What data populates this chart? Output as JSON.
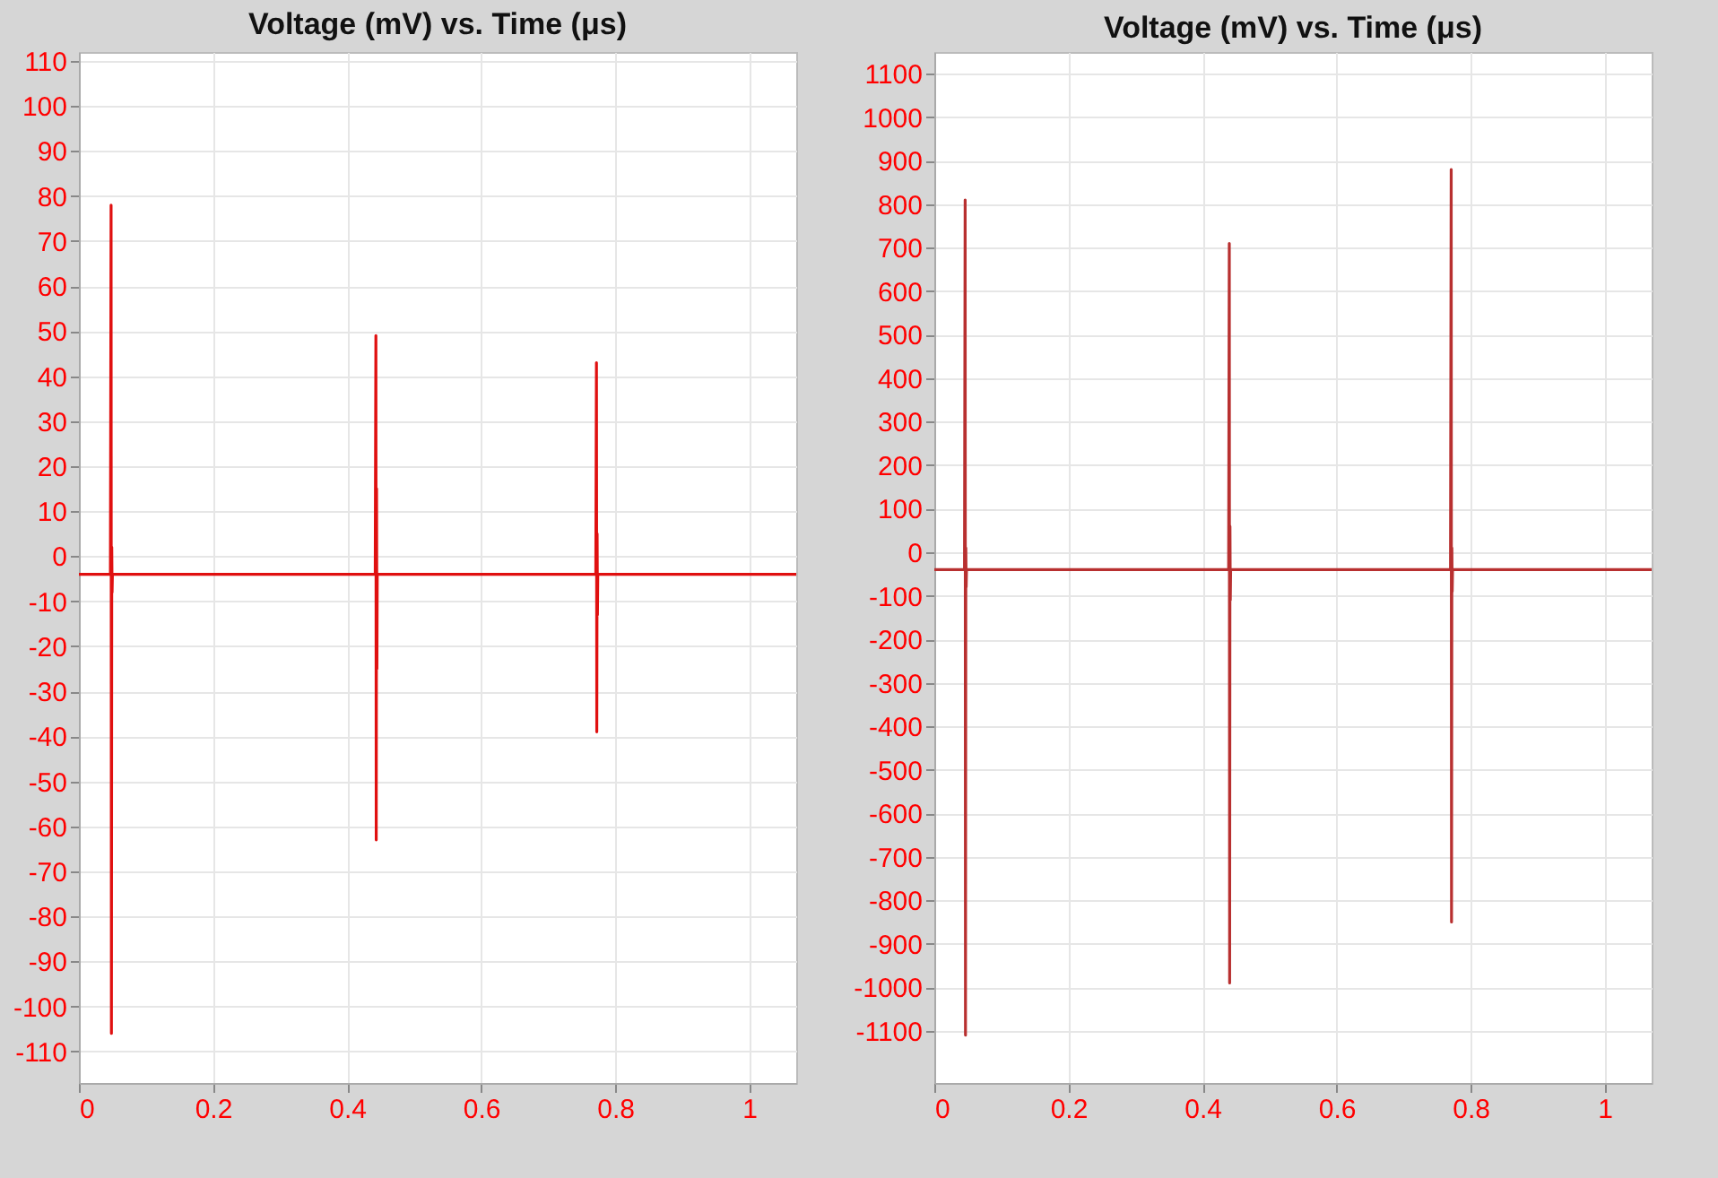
{
  "chart_data": [
    {
      "type": "line",
      "title": "Voltage (mV) vs. Time (μs)",
      "xlim": [
        0,
        1.07
      ],
      "xticks": [
        0,
        0.2,
        0.4,
        0.6,
        0.8,
        1
      ],
      "ylim": [
        -117,
        112
      ],
      "yticks": [
        -110,
        -100,
        -90,
        -80,
        -70,
        -60,
        -50,
        -40,
        -30,
        -20,
        -10,
        0,
        10,
        20,
        30,
        40,
        50,
        60,
        70,
        80,
        90,
        100,
        110
      ],
      "grid": true,
      "series": [
        {
          "color": "#e01010",
          "x": [
            0,
            0.047,
            0.048,
            0.0485,
            0.049,
            0.0495,
            0.05,
            0.442,
            0.443,
            0.4435,
            0.444,
            0.4445,
            0.445,
            0.771,
            0.772,
            0.7725,
            0.773,
            0.7735,
            0.774,
            1.07
          ],
          "values": [
            -4,
            -4,
            78,
            -106,
            2,
            -8,
            -4,
            -4,
            49,
            -63,
            15,
            -25,
            -4,
            -4,
            43,
            -39,
            5,
            -13,
            -4,
            -4
          ]
        }
      ]
    },
    {
      "type": "line",
      "title": "Voltage (mV) vs. Time (μs)",
      "xlim": [
        0,
        1.07
      ],
      "xticks": [
        0,
        0.2,
        0.4,
        0.6,
        0.8,
        1
      ],
      "ylim": [
        -1220,
        1150
      ],
      "yticks": [
        -1100,
        -1000,
        -900,
        -800,
        -700,
        -600,
        -500,
        -400,
        -300,
        -200,
        -100,
        0,
        100,
        200,
        300,
        400,
        500,
        600,
        700,
        800,
        900,
        1000,
        1100
      ],
      "grid": true,
      "series": [
        {
          "color": "#b83030",
          "x": [
            0,
            0.045,
            0.046,
            0.0465,
            0.047,
            0.0475,
            0.048,
            0.439,
            0.44,
            0.4405,
            0.441,
            0.4415,
            0.442,
            0.77,
            0.771,
            0.7715,
            0.772,
            0.7725,
            0.773,
            1.07
          ],
          "values": [
            -40,
            -40,
            810,
            -1110,
            10,
            -80,
            -40,
            -40,
            710,
            -990,
            60,
            -110,
            -40,
            -40,
            880,
            -850,
            10,
            -90,
            -40,
            -40
          ]
        }
      ]
    }
  ]
}
